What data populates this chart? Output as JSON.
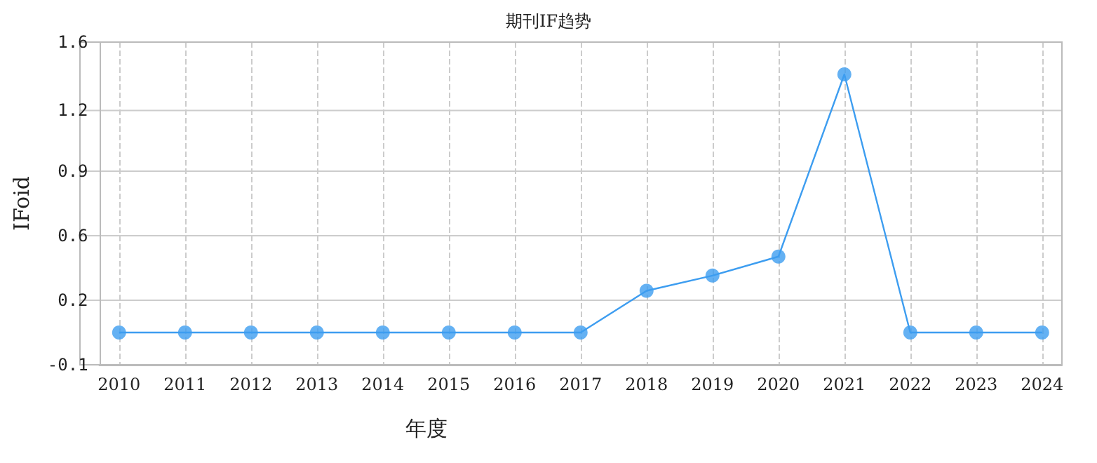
{
  "chart_data": {
    "type": "line",
    "title": "期刊IF趋势",
    "xlabel": "年度",
    "ylabel": "IFoid",
    "x": [
      2010,
      2011,
      2012,
      2013,
      2014,
      2015,
      2016,
      2017,
      2018,
      2019,
      2020,
      2021,
      2022,
      2023,
      2024
    ],
    "xlim": [
      2009.7,
      2024.3
    ],
    "xticks": [
      2010,
      2011,
      2012,
      2013,
      2014,
      2015,
      2016,
      2017,
      2018,
      2019,
      2020,
      2021,
      2022,
      2023,
      2024
    ],
    "ylim": [
      -0.1,
      1.6
    ],
    "yticks": [
      -0.1,
      {
        "value": 0.24,
        "label": "0.2"
      },
      {
        "value": 0.58,
        "label": "0.6"
      },
      {
        "value": 0.92,
        "label": "0.9"
      },
      {
        "value": 1.24,
        "label": "1.2"
      },
      1.6
    ],
    "series": [
      {
        "color": "#3d9df0",
        "values": [
          0.07,
          0.07,
          0.07,
          0.07,
          0.07,
          0.07,
          0.07,
          0.07,
          0.29,
          0.37,
          0.47,
          1.43,
          0.07,
          0.07,
          0.07
        ]
      }
    ],
    "grid": true,
    "marker": "circle",
    "line_style": "solid"
  }
}
